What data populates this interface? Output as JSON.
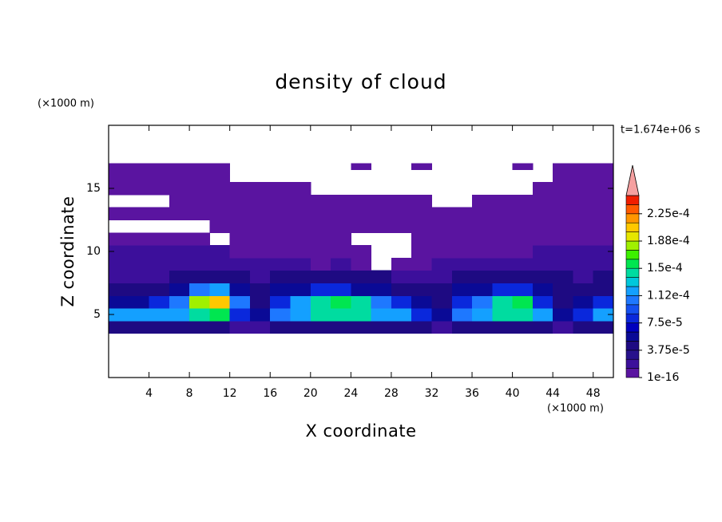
{
  "chart_data": {
    "type": "contour",
    "title": "density of cloud",
    "x_label": "X coordinate",
    "y_label": "Z coordinate",
    "x_unit": "(×1000 m)",
    "y_unit": "(×1000 m)",
    "annotation": "t=1.674e+06 s",
    "xlim": [
      0,
      50
    ],
    "ylim": [
      0,
      20
    ],
    "xticks": [
      4,
      8,
      12,
      16,
      20,
      24,
      28,
      32,
      36,
      40,
      44,
      48
    ],
    "yticks": [
      5,
      10,
      15
    ],
    "x_edges": [
      0,
      2,
      4,
      6,
      8,
      10,
      12,
      14,
      16,
      18,
      20,
      22,
      24,
      26,
      28,
      30,
      32,
      34,
      36,
      38,
      40,
      42,
      44,
      46,
      48,
      50
    ],
    "z_edges": [
      3.5,
      4.5,
      5.5,
      6.5,
      7.5,
      8.5,
      9.5,
      10.5,
      11.5,
      12.5,
      13.5,
      14.5,
      15.5,
      16.5,
      17
    ],
    "z": [
      [
        4e-05,
        4e-05,
        4e-05,
        4e-05,
        4e-05,
        4e-05,
        2e-05,
        2e-05,
        4e-05,
        4e-05,
        4e-05,
        4e-05,
        4e-05,
        4e-05,
        4e-05,
        4e-05,
        2e-05,
        4e-05,
        4e-05,
        4e-05,
        4e-05,
        4e-05,
        2e-05,
        4e-05,
        4e-05
      ],
      [
        0.00012,
        0.00012,
        0.00012,
        0.00012,
        0.00014,
        0.00016,
        8e-05,
        6e-05,
        0.0001,
        0.00012,
        0.00014,
        0.00014,
        0.00014,
        0.00012,
        0.00012,
        8e-05,
        6e-05,
        0.0001,
        0.00012,
        0.00014,
        0.00014,
        0.00012,
        6e-05,
        8e-05,
        0.00012
      ],
      [
        6e-05,
        6e-05,
        8e-05,
        0.0001,
        0.00018,
        0.0002,
        0.0001,
        4e-05,
        8e-05,
        0.00012,
        0.00014,
        0.00016,
        0.00014,
        0.0001,
        8e-05,
        6e-05,
        4e-05,
        8e-05,
        0.0001,
        0.00014,
        0.00016,
        8e-05,
        4e-05,
        6e-05,
        8e-05
      ],
      [
        4e-05,
        4e-05,
        4e-05,
        6e-05,
        0.0001,
        0.00012,
        6e-05,
        4e-05,
        6e-05,
        6e-05,
        8e-05,
        8e-05,
        6e-05,
        6e-05,
        4e-05,
        4e-05,
        4e-05,
        6e-05,
        6e-05,
        8e-05,
        8e-05,
        6e-05,
        4e-05,
        4e-05,
        4e-05
      ],
      [
        2e-05,
        2e-05,
        2e-05,
        4e-05,
        4e-05,
        4e-05,
        4e-05,
        2e-05,
        4e-05,
        4e-05,
        4e-05,
        4e-05,
        4e-05,
        4e-05,
        2e-05,
        2e-05,
        2e-05,
        4e-05,
        4e-05,
        4e-05,
        4e-05,
        4e-05,
        4e-05,
        2e-05,
        4e-05
      ],
      [
        2e-05,
        2e-05,
        2e-05,
        2e-05,
        2e-05,
        2e-05,
        2e-05,
        2e-05,
        2e-05,
        2e-05,
        1e-16,
        2e-05,
        1e-16,
        null,
        1e-16,
        1e-16,
        2e-05,
        2e-05,
        2e-05,
        2e-05,
        2e-05,
        2e-05,
        2e-05,
        2e-05,
        2e-05
      ],
      [
        2e-05,
        2e-05,
        2e-05,
        2e-05,
        2e-05,
        2e-05,
        1e-16,
        1e-16,
        1e-16,
        1e-16,
        1e-16,
        1e-16,
        1e-16,
        null,
        null,
        1e-16,
        1e-16,
        1e-16,
        1e-16,
        1e-16,
        1e-16,
        2e-05,
        2e-05,
        2e-05,
        2e-05
      ],
      [
        1e-16,
        1e-16,
        1e-16,
        1e-16,
        1e-16,
        null,
        1e-16,
        1e-16,
        1e-16,
        1e-16,
        1e-16,
        1e-16,
        null,
        null,
        null,
        1e-16,
        1e-16,
        1e-16,
        1e-16,
        1e-16,
        1e-16,
        1e-16,
        1e-16,
        1e-16,
        1e-16
      ],
      [
        null,
        null,
        null,
        null,
        null,
        1e-16,
        1e-16,
        1e-16,
        1e-16,
        1e-16,
        1e-16,
        1e-16,
        1e-16,
        1e-16,
        1e-16,
        1e-16,
        1e-16,
        1e-16,
        1e-16,
        1e-16,
        1e-16,
        1e-16,
        1e-16,
        1e-16,
        1e-16
      ],
      [
        1e-16,
        1e-16,
        1e-16,
        1e-16,
        1e-16,
        1e-16,
        1e-16,
        1e-16,
        1e-16,
        1e-16,
        1e-16,
        1e-16,
        1e-16,
        1e-16,
        1e-16,
        1e-16,
        1e-16,
        1e-16,
        1e-16,
        1e-16,
        1e-16,
        1e-16,
        1e-16,
        1e-16,
        1e-16
      ],
      [
        null,
        null,
        null,
        1e-16,
        1e-16,
        1e-16,
        1e-16,
        1e-16,
        1e-16,
        1e-16,
        1e-16,
        1e-16,
        1e-16,
        1e-16,
        1e-16,
        1e-16,
        null,
        null,
        1e-16,
        1e-16,
        1e-16,
        1e-16,
        1e-16,
        1e-16,
        1e-16
      ],
      [
        1e-16,
        1e-16,
        1e-16,
        1e-16,
        1e-16,
        1e-16,
        1e-16,
        1e-16,
        1e-16,
        1e-16,
        null,
        null,
        null,
        null,
        null,
        null,
        null,
        null,
        null,
        null,
        null,
        1e-16,
        1e-16,
        1e-16,
        1e-16
      ],
      [
        1e-16,
        1e-16,
        1e-16,
        1e-16,
        1e-16,
        1e-16,
        null,
        null,
        null,
        null,
        null,
        null,
        null,
        null,
        null,
        null,
        null,
        null,
        null,
        null,
        null,
        null,
        1e-16,
        1e-16,
        1e-16
      ],
      [
        1e-16,
        1e-16,
        1e-16,
        1e-16,
        1e-16,
        1e-16,
        null,
        null,
        null,
        null,
        null,
        null,
        1e-16,
        null,
        null,
        1e-16,
        null,
        null,
        null,
        null,
        1e-16,
        null,
        1e-16,
        1e-16,
        1e-16
      ]
    ],
    "levels": [
      1e-16,
      1.25e-05,
      2.5e-05,
      3.75e-05,
      5e-05,
      6.25e-05,
      7.5e-05,
      8.75e-05,
      0.0001,
      0.0001125,
      0.000125,
      0.0001375,
      0.00015,
      0.0001625,
      0.000175,
      0.0001875,
      0.0002,
      0.0002125,
      0.000225,
      0.0002375
    ],
    "colors": [
      "#5a14a0",
      "#3c0f9b",
      "#28118c",
      "#1e0a82",
      "#0a0a96",
      "#0000be",
      "#0a28dc",
      "#1450f0",
      "#1e78ff",
      "#14a0ff",
      "#00c8dc",
      "#00dca0",
      "#00e650",
      "#3cf000",
      "#a0f000",
      "#e6e600",
      "#ffc800",
      "#ff9600",
      "#ff5a00",
      "#f01e00"
    ],
    "extend_color": "#f5a0a0",
    "cbar_ticks": [
      {
        "value": 1e-16,
        "label": "1e-16"
      },
      {
        "value": 3.75e-05,
        "label": "3.75e-5"
      },
      {
        "value": 7.5e-05,
        "label": "7.5e-5"
      },
      {
        "value": 0.0001125,
        "label": "1.12e-4"
      },
      {
        "value": 0.00015,
        "label": "1.5e-4"
      },
      {
        "value": 0.0001875,
        "label": "1.88e-4"
      },
      {
        "value": 0.000225,
        "label": "2.25e-4"
      }
    ]
  }
}
